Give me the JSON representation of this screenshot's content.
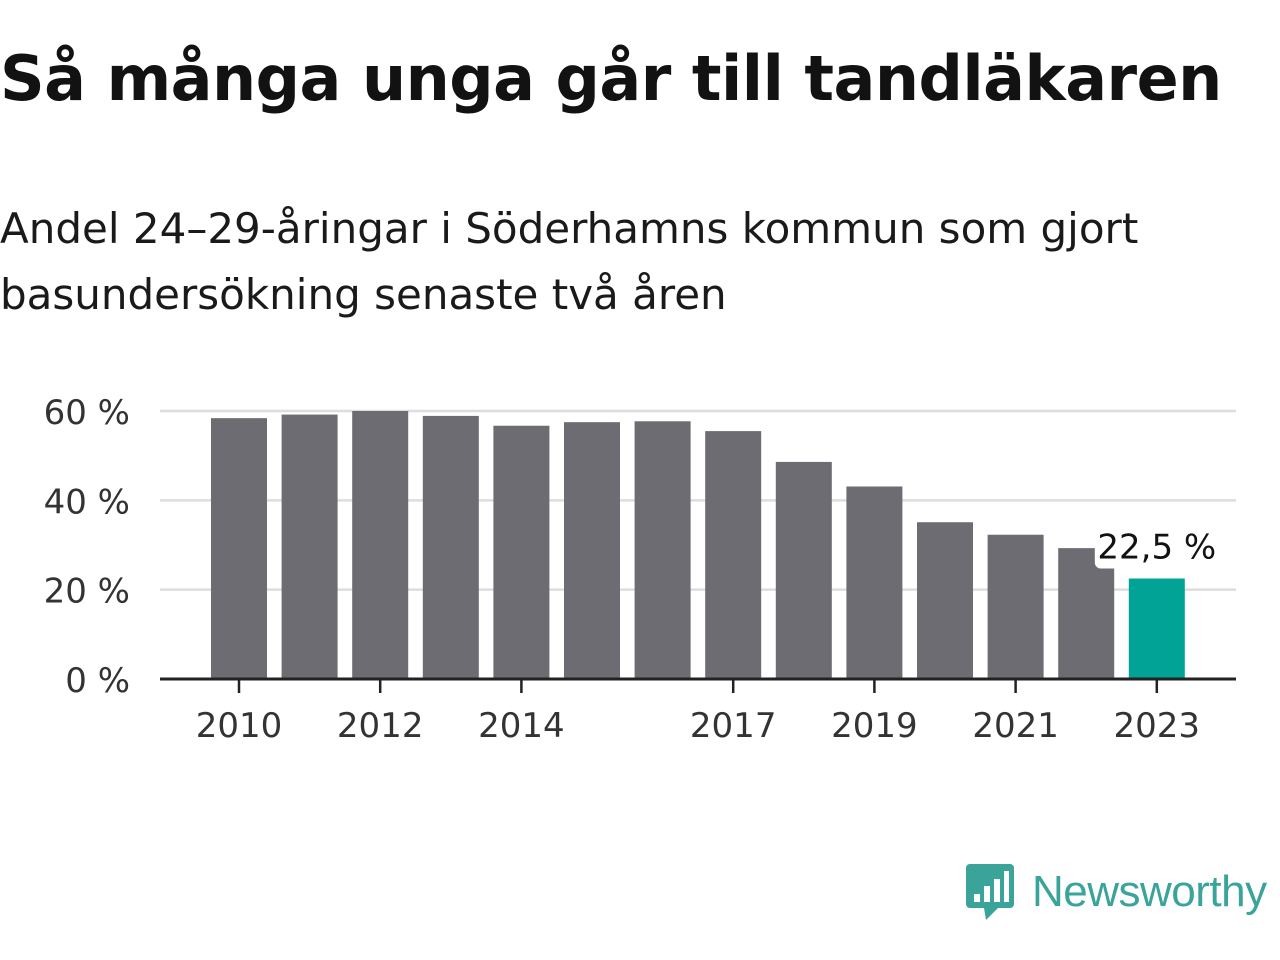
{
  "title": "Så många unga går till tandläkaren",
  "subtitle": "Andel 24–29-åringar i Söderhamns kommun som gjort basundersökning senaste två åren",
  "brand": {
    "name": "Newsworthy",
    "color": "#3aa49a",
    "icon": "bar-chart-speech-bubble-icon"
  },
  "colors": {
    "bar": "#6d6c72",
    "highlight": "#00a396",
    "grid": "#dddddd",
    "axis": "#222222"
  },
  "chart_data": {
    "type": "bar",
    "title": "Så många unga går till tandläkaren",
    "subtitle": "Andel 24–29-åringar i Söderhamns kommun som gjort basundersökning senaste två åren",
    "categories": [
      "2010",
      "2011",
      "2012",
      "2013",
      "2014",
      "2015",
      "2016",
      "2017",
      "2018",
      "2019",
      "2020",
      "2021",
      "2022",
      "2023"
    ],
    "values": [
      58.4,
      59.2,
      60.0,
      58.9,
      56.7,
      57.5,
      57.7,
      55.5,
      48.6,
      43.1,
      35.1,
      32.3,
      29.3,
      22.5
    ],
    "x_tick_labels": [
      "2010",
      "2012",
      "2014",
      "2017",
      "2019",
      "2021",
      "2023"
    ],
    "y_ticks": [
      0,
      20,
      40,
      60
    ],
    "y_tick_labels": [
      "0 %",
      "20 %",
      "40 %",
      "60 %"
    ],
    "ylim": [
      0,
      60
    ],
    "highlight": {
      "category": "2023",
      "label": "22,5 %"
    },
    "grid": true
  }
}
